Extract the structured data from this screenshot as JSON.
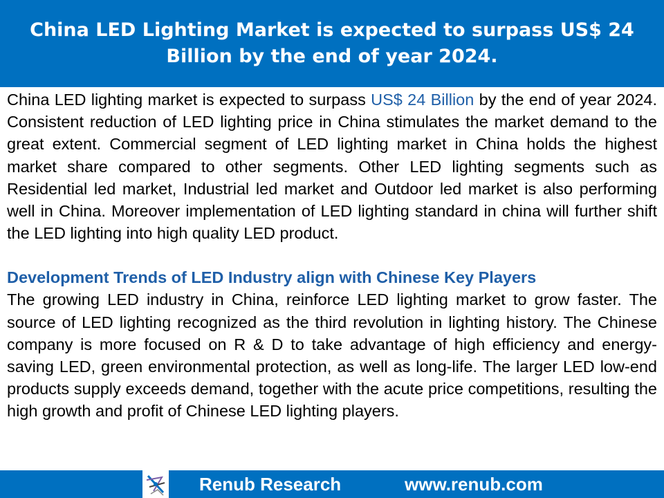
{
  "header": {
    "title": "China LED Lighting Market is expected to surpass US$ 24 Billion by the end of year 2024."
  },
  "intro": {
    "text_before": "China LED lighting market is expected to surpass ",
    "highlight": "US$ 24 Billion",
    "text_after": " by the end of year 2024. Consistent reduction of LED lighting price in China stimulates the market demand to the great extent. Commercial segment of LED lighting market in China holds the highest market share compared to other segments. Other LED lighting segments such as Residential led market, Industrial led market and Outdoor led market is also performing well in China. Moreover implementation of LED lighting standard in china will further shift the LED lighting into high quality LED product."
  },
  "section": {
    "heading": "Development Trends of LED Industry align with Chinese Key Players",
    "body": "The growing LED industry in China, reinforce LED lighting market to grow faster. The source of LED lighting recognized as the third revolution in lighting history. The Chinese company is more focused on R & D to take advantage of high efficiency and energy-saving LED, green environmental protection, as well as long-life. The larger LED low-end products supply exceeds demand, together with the acute price competitions, resulting the high growth and profit of Chinese LED lighting players."
  },
  "footer": {
    "company": "Renub Research",
    "url": "www.renub.com",
    "logo_icon": "renub-logo-icon"
  },
  "colors": {
    "banner": "#0070c0",
    "accent_text": "#1f5fa8",
    "body_text": "#000000",
    "background": "#ffffff"
  }
}
